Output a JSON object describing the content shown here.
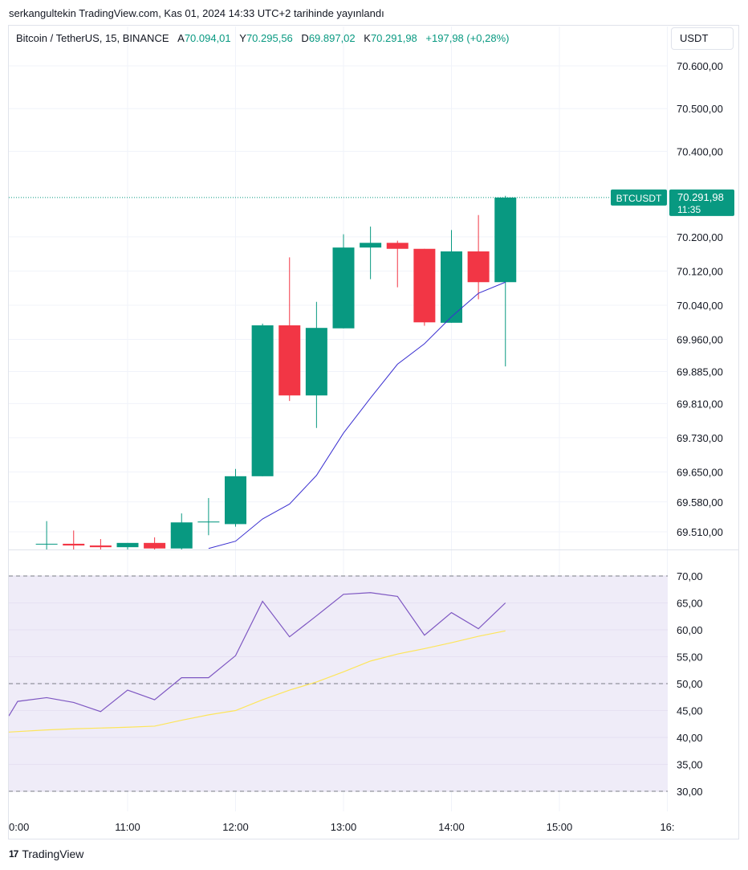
{
  "header": {
    "published_text": "serkangultekin TradingView.com, Kas 01, 2024 14:33 UTC+2 tarihinde yayınlandı"
  },
  "legend": {
    "symbol": "Bitcoin / TetherUS, 15, BINANCE",
    "open_label": "A",
    "open": "70.094,01",
    "high_label": "Y",
    "high": "70.295,56",
    "low_label": "D",
    "low": "69.897,02",
    "close_label": "K",
    "close": "70.291,98",
    "change": "+197,98 (+0,28%)"
  },
  "currency_button": {
    "label": "USDT"
  },
  "price_tag": {
    "symbol": "BTCUSDT",
    "price": "70.291,98",
    "countdown": "11:35"
  },
  "footer": {
    "brand": "TradingView",
    "logo_text": "17"
  },
  "colors": {
    "up": "#089981",
    "down": "#f23645",
    "ma_line": "#3a2fd0",
    "rsi_line": "#7e57c2",
    "rsi_ma": "#fde55b",
    "rsi_band": "#efecf8",
    "grid": "#f0f3fa"
  },
  "chart_data": [
    {
      "type": "candlestick",
      "title": "Bitcoin / TetherUS, 15, BINANCE",
      "x_ticks": [
        "0:00",
        "11:00",
        "12:00",
        "13:00",
        "14:00",
        "15:00",
        "16:"
      ],
      "y_ticks": [
        "70.600,00",
        "70.500,00",
        "70.400,00",
        "70.200,00",
        "70.120,00",
        "70.040,00",
        "69.960,00",
        "69.885,00",
        "69.810,00",
        "69.730,00",
        "69.650,00",
        "69.580,00",
        "69.510,00"
      ],
      "ylim": [
        69470,
        70650
      ],
      "candles": [
        {
          "time": "10:15",
          "open": 69482,
          "high": 69535,
          "low": 69465,
          "close": 69482
        },
        {
          "time": "10:30",
          "open": 69482,
          "high": 69513,
          "low": 69465,
          "close": 69478
        },
        {
          "time": "10:45",
          "open": 69478,
          "high": 69493,
          "low": 69465,
          "close": 69474
        },
        {
          "time": "11:00",
          "open": 69474,
          "high": 69484,
          "low": 69465,
          "close": 69484
        },
        {
          "time": "11:15",
          "open": 69484,
          "high": 69497,
          "low": 69465,
          "close": 69471
        },
        {
          "time": "11:30",
          "open": 69471,
          "high": 69553,
          "low": 69465,
          "close": 69532
        },
        {
          "time": "11:45",
          "open": 69532,
          "high": 69589,
          "low": 69502,
          "close": 69534
        },
        {
          "time": "12:00",
          "open": 69528,
          "high": 69657,
          "low": 69522,
          "close": 69640
        },
        {
          "time": "12:15",
          "open": 69640,
          "high": 69997,
          "low": 69640,
          "close": 69993
        },
        {
          "time": "12:30",
          "open": 69993,
          "high": 70152,
          "low": 69816,
          "close": 69829
        },
        {
          "time": "12:45",
          "open": 69829,
          "high": 70048,
          "low": 69753,
          "close": 69987
        },
        {
          "time": "13:00",
          "open": 69986,
          "high": 70206,
          "low": 69986,
          "close": 70175
        },
        {
          "time": "13:15",
          "open": 70175,
          "high": 70224,
          "low": 70101,
          "close": 70186
        },
        {
          "time": "13:30",
          "open": 70186,
          "high": 70191,
          "low": 70082,
          "close": 70172
        },
        {
          "time": "13:45",
          "open": 70172,
          "high": 70172,
          "low": 69992,
          "close": 70000
        },
        {
          "time": "14:00",
          "open": 69999,
          "high": 70216,
          "low": 69999,
          "close": 70166
        },
        {
          "time": "14:15",
          "open": 70166,
          "high": 70251,
          "low": 70054,
          "close": 70094
        },
        {
          "time": "14:30",
          "open": 70094,
          "high": 70296,
          "low": 69897,
          "close": 70292
        }
      ],
      "ma": [
        {
          "time": "11:45",
          "value": 69471
        },
        {
          "time": "12:00",
          "value": 69488
        },
        {
          "time": "12:15",
          "value": 69540
        },
        {
          "time": "12:30",
          "value": 69575
        },
        {
          "time": "12:45",
          "value": 69642
        },
        {
          "time": "13:00",
          "value": 69741
        },
        {
          "time": "13:15",
          "value": 69823
        },
        {
          "time": "13:30",
          "value": 69902
        },
        {
          "time": "13:45",
          "value": 69950
        },
        {
          "time": "14:00",
          "value": 70013
        },
        {
          "time": "14:15",
          "value": 70068
        },
        {
          "time": "14:30",
          "value": 70094
        }
      ],
      "last_price": 70291.98
    },
    {
      "type": "line",
      "x_ticks": [
        "0:00",
        "11:00",
        "12:00",
        "13:00",
        "14:00",
        "15:00",
        "16:"
      ],
      "y_ticks": [
        "70,00",
        "65,00",
        "60,00",
        "55,00",
        "50,00",
        "45,00",
        "40,00",
        "35,00",
        "30,00"
      ],
      "ylim": [
        28,
        72
      ],
      "bands": [
        30,
        50,
        70
      ],
      "series": [
        {
          "key": "rsi",
          "points": [
            {
              "time": "9:45",
              "value": 44.0
            },
            {
              "time": "9:50",
              "value": 46.7
            },
            {
              "time": "10:15",
              "value": 47.4
            },
            {
              "time": "10:30",
              "value": 46.5
            },
            {
              "time": "10:45",
              "value": 44.8
            },
            {
              "time": "11:00",
              "value": 48.8
            },
            {
              "time": "11:15",
              "value": 47.0
            },
            {
              "time": "11:30",
              "value": 51.1
            },
            {
              "time": "11:45",
              "value": 51.1
            },
            {
              "time": "12:00",
              "value": 55.2
            },
            {
              "time": "12:15",
              "value": 65.3
            },
            {
              "time": "12:30",
              "value": 58.7
            },
            {
              "time": "12:45",
              "value": 62.6
            },
            {
              "time": "13:00",
              "value": 66.6
            },
            {
              "time": "13:15",
              "value": 66.9
            },
            {
              "time": "13:30",
              "value": 66.2
            },
            {
              "time": "13:45",
              "value": 59.0
            },
            {
              "time": "14:00",
              "value": 63.2
            },
            {
              "time": "14:15",
              "value": 60.2
            },
            {
              "time": "14:30",
              "value": 65.0
            }
          ]
        },
        {
          "key": "rsi_ma",
          "points": [
            {
              "time": "9:45",
              "value": 41.0
            },
            {
              "time": "10:15",
              "value": 41.4
            },
            {
              "time": "10:30",
              "value": 41.6
            },
            {
              "time": "11:00",
              "value": 41.9
            },
            {
              "time": "11:15",
              "value": 42.1
            },
            {
              "time": "11:30",
              "value": 43.2
            },
            {
              "time": "11:45",
              "value": 44.2
            },
            {
              "time": "12:00",
              "value": 45.0
            },
            {
              "time": "12:15",
              "value": 47.0
            },
            {
              "time": "12:30",
              "value": 48.8
            },
            {
              "time": "12:45",
              "value": 50.3
            },
            {
              "time": "13:00",
              "value": 52.2
            },
            {
              "time": "13:15",
              "value": 54.2
            },
            {
              "time": "13:30",
              "value": 55.5
            },
            {
              "time": "13:45",
              "value": 56.5
            },
            {
              "time": "14:00",
              "value": 57.6
            },
            {
              "time": "14:15",
              "value": 58.8
            },
            {
              "time": "14:30",
              "value": 59.8
            }
          ]
        }
      ]
    }
  ]
}
